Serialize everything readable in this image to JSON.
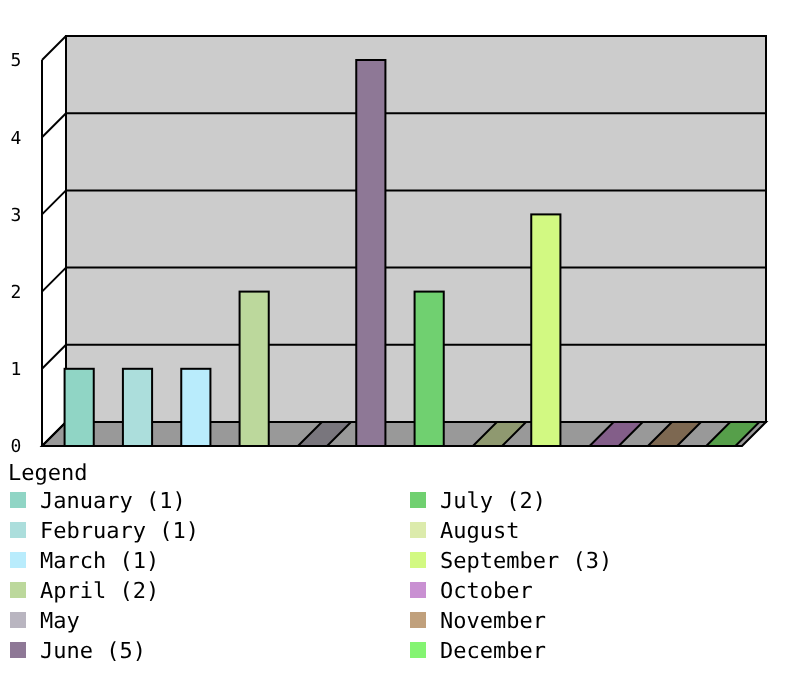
{
  "chart_data": {
    "type": "bar",
    "legend_title": "Legend",
    "stacked": true,
    "categories": [
      null,
      null,
      null,
      null,
      null,
      null,
      null,
      null,
      null,
      null,
      null,
      null
    ],
    "series": [
      {
        "name": "January (1)",
        "color": "#90d5c5",
        "values": [
          1,
          null,
          null,
          null,
          null,
          null,
          null,
          null,
          null,
          null,
          null,
          null
        ]
      },
      {
        "name": "February (1)",
        "color": "#acdedc",
        "values": [
          null,
          1,
          null,
          null,
          null,
          null,
          null,
          null,
          null,
          null,
          null,
          null
        ]
      },
      {
        "name": "March (1)",
        "color": "#b9ecfc",
        "values": [
          null,
          null,
          1,
          null,
          null,
          null,
          null,
          null,
          null,
          null,
          null,
          null
        ]
      },
      {
        "name": "April (2)",
        "color": "#bcd89c",
        "values": [
          null,
          null,
          null,
          2,
          null,
          null,
          null,
          null,
          null,
          null,
          null,
          null
        ]
      },
      {
        "name": "May",
        "color": "#b9b5c0",
        "values": [
          null,
          null,
          null,
          null,
          0,
          null,
          null,
          null,
          null,
          null,
          null,
          null
        ]
      },
      {
        "name": "June (5)",
        "color": "#8e7896",
        "values": [
          null,
          null,
          null,
          null,
          null,
          5,
          null,
          null,
          null,
          null,
          null,
          null
        ]
      },
      {
        "name": "July (2)",
        "color": "#70d070",
        "values": [
          null,
          null,
          null,
          null,
          null,
          null,
          2,
          null,
          null,
          null,
          null,
          null
        ]
      },
      {
        "name": "August",
        "color": "#dcebac",
        "values": [
          null,
          null,
          null,
          null,
          null,
          null,
          null,
          0,
          null,
          null,
          null,
          null
        ]
      },
      {
        "name": "September (3)",
        "color": "#d2f982",
        "values": [
          null,
          null,
          null,
          null,
          null,
          null,
          null,
          null,
          3,
          null,
          null,
          null
        ]
      },
      {
        "name": "October",
        "color": "#c990d2",
        "values": [
          null,
          null,
          null,
          null,
          null,
          null,
          null,
          null,
          null,
          0,
          null,
          null
        ]
      },
      {
        "name": "November",
        "color": "#c0a07c",
        "values": [
          null,
          null,
          null,
          null,
          null,
          null,
          null,
          null,
          null,
          null,
          0,
          null
        ]
      },
      {
        "name": "December",
        "color": "#84f472",
        "values": [
          null,
          null,
          null,
          null,
          null,
          null,
          null,
          null,
          null,
          null,
          null,
          0
        ]
      }
    ],
    "ylim": [
      0,
      5
    ],
    "yticks": [
      0,
      1,
      2,
      3,
      4,
      5
    ],
    "grid": "y",
    "legend": "bottom",
    "tick_labels": "y"
  }
}
